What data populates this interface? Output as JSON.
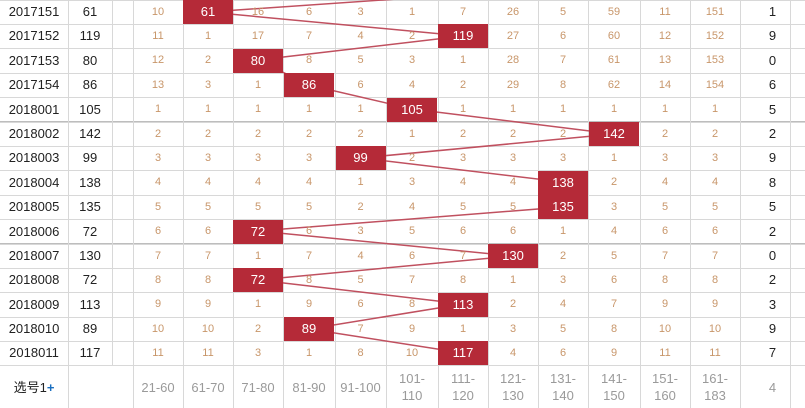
{
  "colors": {
    "hit": "#b52a38",
    "line": "#c0505f",
    "grid": "#d8d8d8",
    "missText": "#c8966a"
  },
  "rows": [
    {
      "issue": "2017151",
      "sum": "61",
      "cells": [
        "10",
        "61",
        "16",
        "6",
        "3",
        "1",
        "7",
        "26",
        "5",
        "59",
        "11",
        "151"
      ],
      "hit": 1,
      "tail": "1"
    },
    {
      "issue": "2017152",
      "sum": "119",
      "cells": [
        "11",
        "1",
        "17",
        "7",
        "4",
        "2",
        "119",
        "27",
        "6",
        "60",
        "12",
        "152"
      ],
      "hit": 6,
      "tail": "9"
    },
    {
      "issue": "2017153",
      "sum": "80",
      "cells": [
        "12",
        "2",
        "80",
        "8",
        "5",
        "3",
        "1",
        "28",
        "7",
        "61",
        "13",
        "153"
      ],
      "hit": 2,
      "tail": "0"
    },
    {
      "issue": "2017154",
      "sum": "86",
      "cells": [
        "13",
        "3",
        "1",
        "86",
        "6",
        "4",
        "2",
        "29",
        "8",
        "62",
        "14",
        "154"
      ],
      "hit": 3,
      "tail": "6"
    },
    {
      "issue": "2018001",
      "sum": "105",
      "cells": [
        "1",
        "1",
        "1",
        "1",
        "1",
        "105",
        "1",
        "1",
        "1",
        "1",
        "1",
        "1"
      ],
      "hit": 5,
      "tail": "5"
    },
    {
      "issue": "2018002",
      "sum": "142",
      "cells": [
        "2",
        "2",
        "2",
        "2",
        "2",
        "1",
        "2",
        "2",
        "2",
        "142",
        "2",
        "2"
      ],
      "hit": 9,
      "tail": "2"
    },
    {
      "issue": "2018003",
      "sum": "99",
      "cells": [
        "3",
        "3",
        "3",
        "3",
        "99",
        "2",
        "3",
        "3",
        "3",
        "1",
        "3",
        "3"
      ],
      "hit": 4,
      "tail": "9"
    },
    {
      "issue": "2018004",
      "sum": "138",
      "cells": [
        "4",
        "4",
        "4",
        "4",
        "1",
        "3",
        "4",
        "4",
        "138",
        "2",
        "4",
        "4"
      ],
      "hit": 8,
      "tail": "8"
    },
    {
      "issue": "2018005",
      "sum": "135",
      "cells": [
        "5",
        "5",
        "5",
        "5",
        "2",
        "4",
        "5",
        "5",
        "135",
        "3",
        "5",
        "5"
      ],
      "hit": 8,
      "tail": "5"
    },
    {
      "issue": "2018006",
      "sum": "72",
      "cells": [
        "6",
        "6",
        "72",
        "6",
        "3",
        "5",
        "6",
        "6",
        "1",
        "4",
        "6",
        "6"
      ],
      "hit": 2,
      "tail": "2"
    },
    {
      "issue": "2018007",
      "sum": "130",
      "cells": [
        "7",
        "7",
        "1",
        "7",
        "4",
        "6",
        "7",
        "130",
        "2",
        "5",
        "7",
        "7"
      ],
      "hit": 7,
      "tail": "0"
    },
    {
      "issue": "2018008",
      "sum": "72",
      "cells": [
        "8",
        "8",
        "72",
        "8",
        "5",
        "7",
        "8",
        "1",
        "3",
        "6",
        "8",
        "8"
      ],
      "hit": 2,
      "tail": "2"
    },
    {
      "issue": "2018009",
      "sum": "113",
      "cells": [
        "9",
        "9",
        "1",
        "9",
        "6",
        "8",
        "113",
        "2",
        "4",
        "7",
        "9",
        "9"
      ],
      "hit": 6,
      "tail": "3"
    },
    {
      "issue": "2018010",
      "sum": "89",
      "cells": [
        "10",
        "10",
        "2",
        "89",
        "7",
        "9",
        "1",
        "3",
        "5",
        "8",
        "10",
        "10"
      ],
      "hit": 3,
      "tail": "9"
    },
    {
      "issue": "2018011",
      "sum": "117",
      "cells": [
        "11",
        "11",
        "3",
        "1",
        "8",
        "10",
        "117",
        "4",
        "6",
        "9",
        "11",
        "11"
      ],
      "hit": 6,
      "tail": "7"
    }
  ],
  "footer": {
    "select_label": "选号1",
    "plus": "+",
    "columns": [
      "21-60",
      "61-70",
      "71-80",
      "81-90",
      "91-100",
      "101-\n110",
      "111-\n120",
      "121-\n130",
      "131-\n140",
      "141-\n150",
      "151-\n160",
      "161-\n183"
    ],
    "tail": "4"
  }
}
